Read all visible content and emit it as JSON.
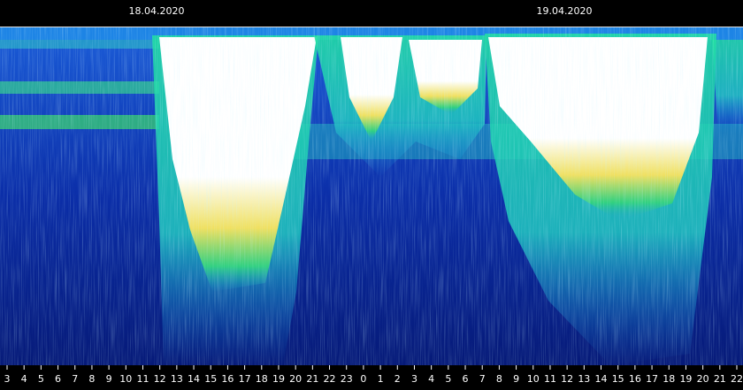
{
  "chart_data": {
    "type": "spectrogram",
    "dates": [
      "18.04.2020",
      "19.04.2020"
    ],
    "categories": [
      3,
      4,
      5,
      6,
      7,
      8,
      9,
      10,
      11,
      12,
      13,
      14,
      15,
      16,
      17,
      18,
      19,
      20,
      21,
      22,
      23,
      0,
      1,
      2,
      3,
      4,
      5,
      6,
      7,
      8,
      9,
      10,
      11,
      12,
      13,
      14,
      15,
      16,
      17,
      18,
      19,
      20,
      21,
      22
    ]
  }
}
